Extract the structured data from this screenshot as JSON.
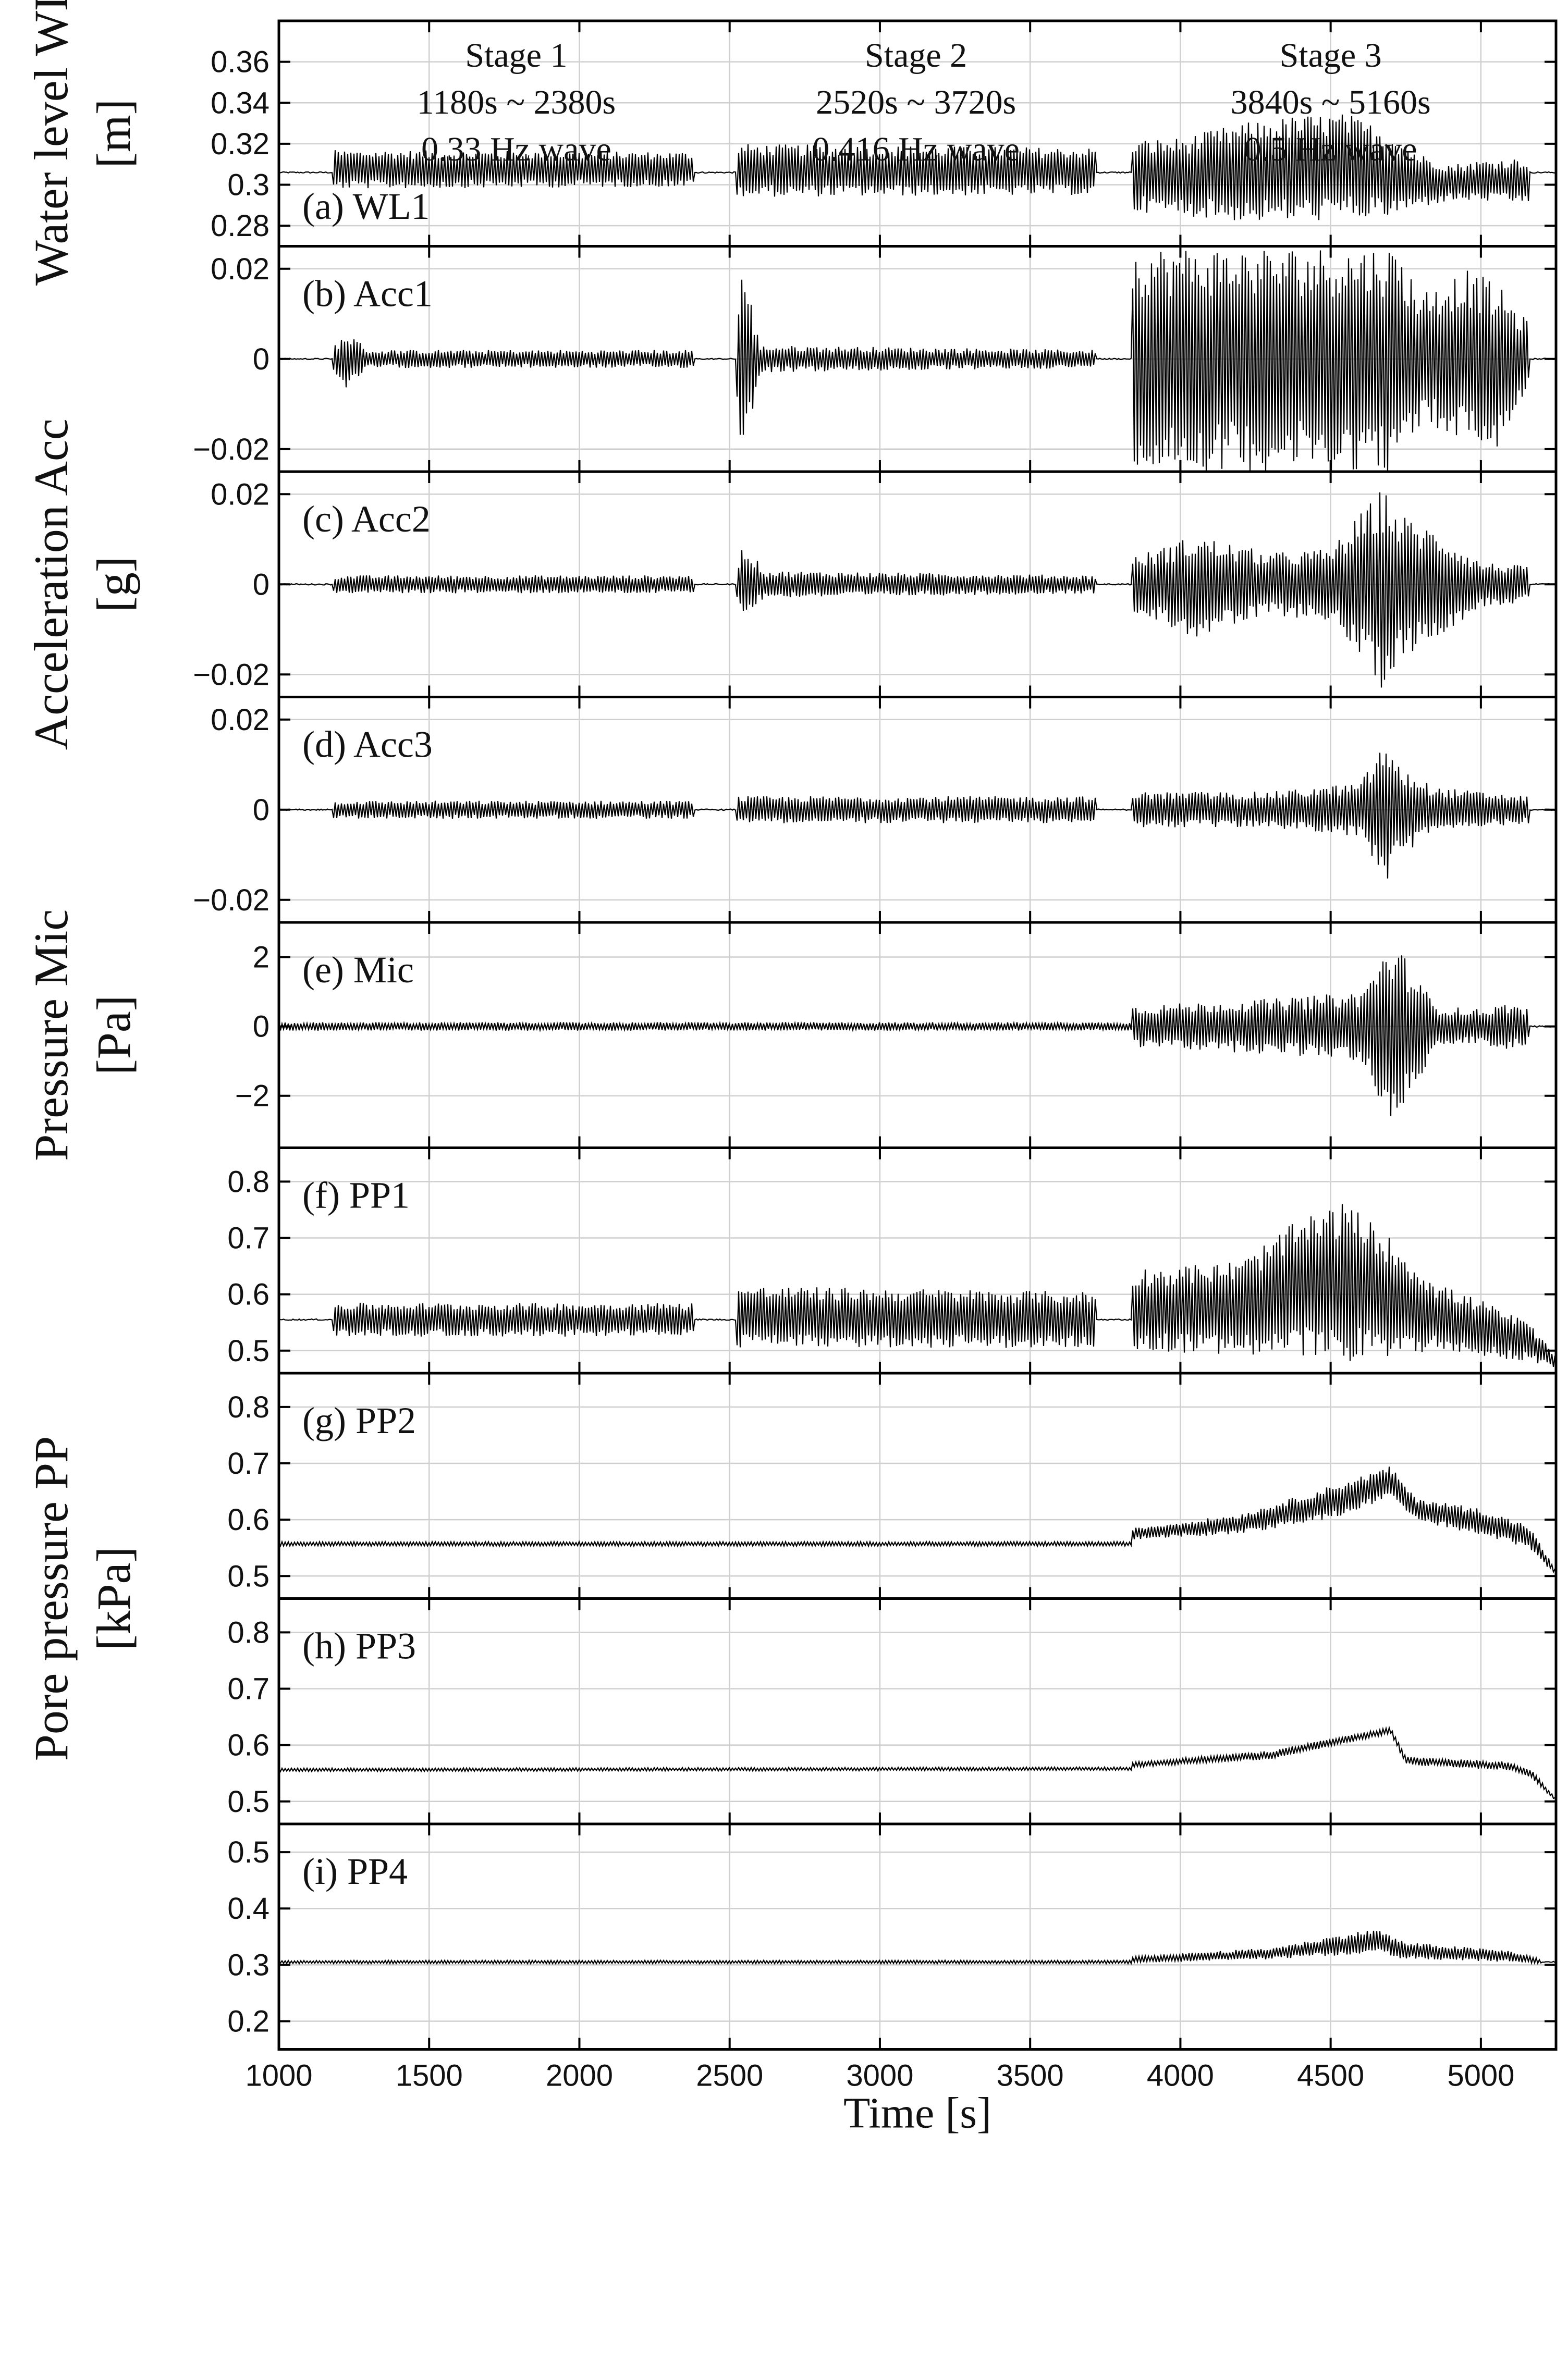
{
  "chart_data": {
    "type": "line",
    "x_label": "Time [s]",
    "xlim": [
      1000,
      5250
    ],
    "xticks": [
      1000,
      1500,
      2000,
      2500,
      3000,
      3500,
      4000,
      4500,
      5000
    ],
    "stages": [
      {
        "name": "Stage 1",
        "range": "1180s ~ 2380s",
        "wave": "0.33 Hz wave"
      },
      {
        "name": "Stage 2",
        "range": "2520s ~ 3720s",
        "wave": "0.416 Hz wave"
      },
      {
        "name": "Stage 3",
        "range": "3840s ~ 5160s",
        "wave": "0.5 Hz wave"
      }
    ],
    "y_groups": [
      {
        "label_lines": [
          "Water level WL",
          "[m]"
        ],
        "panels": [
          0
        ]
      },
      {
        "label_lines": [
          "Acceleration Acc",
          "[g]"
        ],
        "panels": [
          1,
          2,
          3
        ]
      },
      {
        "label_lines": [
          "Pressure Mic",
          "[Pa]"
        ],
        "panels": [
          4
        ]
      },
      {
        "label_lines": [
          "Pore pressure PP",
          "[kPa]"
        ],
        "panels": [
          5,
          6,
          7,
          8
        ]
      }
    ],
    "panels": [
      {
        "label": "(a) WL1",
        "ylim": [
          0.27,
          0.38
        ],
        "yticks": [
          0.28,
          0.3,
          0.32,
          0.34,
          0.36
        ],
        "ytick_labels": [
          "0.28",
          "0.3",
          "0.32",
          "0.34",
          "0.36"
        ],
        "baseline": 0.306,
        "envelope": [
          {
            "x": [
              1180,
              2380
            ],
            "upper": [
              0.317,
              0.316
            ],
            "lower": [
              0.298,
              0.299
            ]
          },
          {
            "x": [
              2520,
              3720
            ],
            "upper": [
              0.32,
              0.318
            ],
            "lower": [
              0.294,
              0.295
            ]
          },
          {
            "x": [
              3840,
              4000,
              4200,
              4400,
              4550,
              4700,
              4800,
              4900,
              5000,
              5100,
              5160
            ],
            "upper": [
              0.322,
              0.323,
              0.33,
              0.334,
              0.335,
              0.326,
              0.315,
              0.31,
              0.312,
              0.313,
              0.313
            ],
            "lower": [
              0.287,
              0.285,
              0.282,
              0.282,
              0.283,
              0.284,
              0.289,
              0.292,
              0.292,
              0.291,
              0.291
            ]
          }
        ]
      },
      {
        "label": "(b) Acc1",
        "ylim": [
          -0.025,
          0.025
        ],
        "yticks": [
          -0.02,
          0,
          0.02
        ],
        "ytick_labels": [
          "−0.02",
          "0",
          "0.02"
        ],
        "baseline": 0,
        "envelope": [
          {
            "x": [
              1180,
              1230,
              1300,
              2380
            ],
            "upper": [
              0.003,
              0.006,
              0.002,
              0.002
            ],
            "lower": [
              -0.003,
              -0.007,
              -0.002,
              -0.002
            ]
          },
          {
            "x": [
              2520,
              2545,
              2600,
              3720
            ],
            "upper": [
              0.008,
              0.022,
              0.003,
              0.002
            ],
            "lower": [
              -0.008,
              -0.023,
              -0.003,
              -0.002
            ]
          },
          {
            "x": [
              3840,
              4200,
              4720,
              4800,
              4950,
              5050,
              5160
            ],
            "upper": [
              0.025,
              0.025,
              0.025,
              0.015,
              0.02,
              0.017,
              0.008
            ],
            "lower": [
              -0.025,
              -0.025,
              -0.025,
              -0.015,
              -0.018,
              -0.021,
              -0.006
            ]
          }
        ]
      },
      {
        "label": "(c) Acc2",
        "ylim": [
          -0.025,
          0.025
        ],
        "yticks": [
          -0.02,
          0,
          0.02
        ],
        "ytick_labels": [
          "−0.02",
          "0",
          "0.02"
        ],
        "baseline": 0,
        "envelope": [
          {
            "x": [
              1180,
              2380
            ],
            "upper": [
              0.002,
              0.002
            ],
            "lower": [
              -0.002,
              -0.002
            ]
          },
          {
            "x": [
              2520,
              2545,
              2620,
              3720
            ],
            "upper": [
              0.004,
              0.009,
              0.003,
              0.002
            ],
            "lower": [
              -0.004,
              -0.007,
              -0.003,
              -0.002
            ]
          },
          {
            "x": [
              3840,
              4050,
              4300,
              4500,
              4680,
              4720,
              4850,
              5000,
              5160
            ],
            "upper": [
              0.006,
              0.011,
              0.007,
              0.008,
              0.022,
              0.016,
              0.012,
              0.005,
              0.004
            ],
            "lower": [
              -0.006,
              -0.012,
              -0.007,
              -0.008,
              -0.024,
              -0.017,
              -0.012,
              -0.005,
              -0.004
            ]
          }
        ]
      },
      {
        "label": "(d) Acc3",
        "ylim": [
          -0.025,
          0.025
        ],
        "yticks": [
          -0.02,
          0,
          0.02
        ],
        "ytick_labels": [
          "−0.02",
          "0",
          "0.02"
        ],
        "baseline": 0,
        "envelope": [
          {
            "x": [
              1180,
              2380
            ],
            "upper": [
              0.002,
              0.002
            ],
            "lower": [
              -0.002,
              -0.002
            ]
          },
          {
            "x": [
              2520,
              3720
            ],
            "upper": [
              0.003,
              0.003
            ],
            "lower": [
              -0.003,
              -0.003
            ]
          },
          {
            "x": [
              3840,
              4300,
              4600,
              4680,
              4720,
              4850,
              5160
            ],
            "upper": [
              0.004,
              0.004,
              0.006,
              0.016,
              0.01,
              0.005,
              0.003
            ],
            "lower": [
              -0.004,
              -0.004,
              -0.006,
              -0.018,
              -0.011,
              -0.005,
              -0.003
            ]
          }
        ]
      },
      {
        "label": "(e) Mic",
        "ylim": [
          -3.5,
          3.0
        ],
        "yticks": [
          -2,
          0,
          2
        ],
        "ytick_labels": [
          "−2",
          "0",
          "2"
        ],
        "baseline": 0,
        "envelope": [
          {
            "x": [
              1000,
              3840
            ],
            "upper": [
              0.12,
              0.12
            ],
            "lower": [
              -0.12,
              -0.12
            ]
          },
          {
            "x": [
              3840,
              4300,
              4600,
              4700,
              4750,
              4850,
              5000,
              5100,
              5160
            ],
            "upper": [
              0.6,
              0.8,
              1.0,
              2.5,
              2.0,
              0.6,
              0.5,
              0.7,
              0.5
            ],
            "lower": [
              -0.6,
              -0.8,
              -1.0,
              -3.0,
              -2.3,
              -0.6,
              -0.5,
              -0.7,
              -0.5
            ]
          }
        ]
      },
      {
        "label": "(f) PP1",
        "ylim": [
          0.46,
          0.86
        ],
        "yticks": [
          0.5,
          0.6,
          0.7,
          0.8
        ],
        "ytick_labels": [
          "0.5",
          "0.6",
          "0.7",
          "0.8"
        ],
        "baseline": 0.555,
        "envelope": [
          {
            "x": [
              1180,
              2380
            ],
            "upper": [
              0.585,
              0.585
            ],
            "lower": [
              0.525,
              0.525
            ]
          },
          {
            "x": [
              2520,
              3720
            ],
            "upper": [
              0.615,
              0.605
            ],
            "lower": [
              0.505,
              0.505
            ]
          },
          {
            "x": [
              3840,
              4200,
              4400,
              4550,
              4700,
              4850,
              5000,
              5160,
              5250
            ],
            "upper": [
              0.645,
              0.66,
              0.735,
              0.765,
              0.7,
              0.62,
              0.59,
              0.55,
              0.49
            ],
            "lower": [
              0.5,
              0.49,
              0.485,
              0.48,
              0.49,
              0.5,
              0.49,
              0.48,
              0.47
            ]
          }
        ]
      },
      {
        "label": "(g) PP2",
        "ylim": [
          0.46,
          0.86
        ],
        "yticks": [
          0.5,
          0.6,
          0.7,
          0.8
        ],
        "ytick_labels": [
          "0.5",
          "0.6",
          "0.7",
          "0.8"
        ],
        "baseline": 0.557,
        "envelope": [
          {
            "x": [
              1000,
              3840
            ],
            "upper": [
              0.561,
              0.561
            ],
            "lower": [
              0.553,
              0.553
            ]
          },
          {
            "x": [
              3840,
              4200,
              4500,
              4700,
              4780,
              5000,
              5160,
              5250
            ],
            "upper": [
              0.585,
              0.61,
              0.66,
              0.695,
              0.64,
              0.62,
              0.59,
              0.51
            ],
            "lower": [
              0.565,
              0.575,
              0.6,
              0.64,
              0.6,
              0.57,
              0.55,
              0.5
            ]
          }
        ]
      },
      {
        "label": "(h) PP3",
        "ylim": [
          0.46,
          0.86
        ],
        "yticks": [
          0.5,
          0.6,
          0.7,
          0.8
        ],
        "ytick_labels": [
          "0.5",
          "0.6",
          "0.7",
          "0.8"
        ],
        "baseline": 0.556,
        "envelope": [
          {
            "x": [
              1000,
              3840
            ],
            "upper": [
              0.559,
              0.561
            ],
            "lower": [
              0.553,
              0.555
            ]
          },
          {
            "x": [
              3840,
              4300,
              4700,
              4750,
              5100,
              5170,
              5250
            ],
            "upper": [
              0.57,
              0.59,
              0.632,
              0.58,
              0.57,
              0.555,
              0.505
            ],
            "lower": [
              0.56,
              0.575,
              0.62,
              0.565,
              0.555,
              0.54,
              0.5
            ]
          }
        ]
      },
      {
        "label": "(i) PP4",
        "ylim": [
          0.15,
          0.55
        ],
        "yticks": [
          0.2,
          0.3,
          0.4,
          0.5
        ],
        "ytick_labels": [
          "0.2",
          "0.3",
          "0.4",
          "0.5"
        ],
        "baseline": 0.305,
        "envelope": [
          {
            "x": [
              1000,
              3840
            ],
            "upper": [
              0.308,
              0.308
            ],
            "lower": [
              0.302,
              0.302
            ]
          },
          {
            "x": [
              3840,
              4300,
              4650,
              4750,
              5100,
              5200
            ],
            "upper": [
              0.315,
              0.33,
              0.365,
              0.34,
              0.325,
              0.31
            ],
            "lower": [
              0.303,
              0.31,
              0.32,
              0.31,
              0.305,
              0.302
            ]
          }
        ]
      }
    ]
  }
}
